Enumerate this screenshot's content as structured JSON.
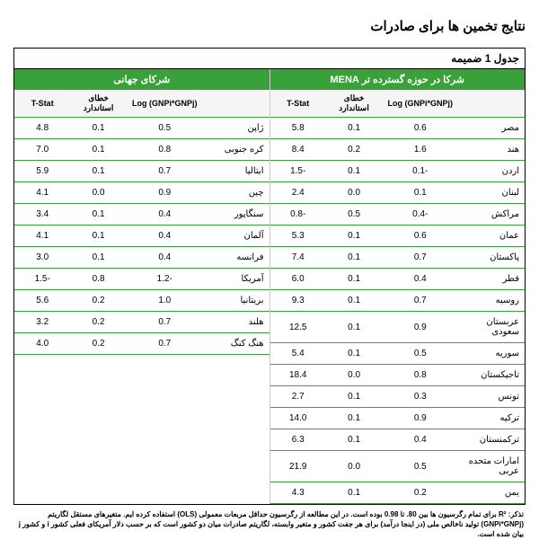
{
  "title": "نتایج تخمین ها برای صادرات",
  "appendix_label": "جدول 1 ضمیمه",
  "colors": {
    "header_bg": "#3aa03a",
    "header_fg": "#ffffff",
    "row_border": "#3aa03a",
    "outer_border": "#000000"
  },
  "left_table": {
    "header": "شرکا در حوزه گسترده تر MENA",
    "columns": {
      "country": "",
      "log": "Log (GNPi*GNPj)",
      "se": "خطای استاندارد",
      "t": "T-Stat"
    },
    "rows": [
      {
        "country": "مصر",
        "log": "0.6",
        "se": "0.1",
        "t": "5.8"
      },
      {
        "country": "هند",
        "log": "1.6",
        "se": "0.2",
        "t": "8.4"
      },
      {
        "country": "اردن",
        "log": "-0.1",
        "se": "0.1",
        "t": "-1.5"
      },
      {
        "country": "لبنان",
        "log": "0.1",
        "se": "0.0",
        "t": "2.4"
      },
      {
        "country": "مراكش",
        "log": "-0.4",
        "se": "0.5",
        "t": "-0.8"
      },
      {
        "country": "عمان",
        "log": "0.6",
        "se": "0.1",
        "t": "5.3"
      },
      {
        "country": "پاکستان",
        "log": "0.7",
        "se": "0.1",
        "t": "7.4"
      },
      {
        "country": "قطر",
        "log": "0.4",
        "se": "0.1",
        "t": "6.0"
      },
      {
        "country": "روسیه",
        "log": "0.7",
        "se": "0.1",
        "t": "9.3"
      },
      {
        "country": "عربستان سعودی",
        "log": "0.9",
        "se": "0.1",
        "t": "12.5"
      },
      {
        "country": "سوریه",
        "log": "0.5",
        "se": "0.1",
        "t": "5.4"
      },
      {
        "country": "تاجیکستان",
        "log": "0.8",
        "se": "0.0",
        "t": "18.4"
      },
      {
        "country": "تونس",
        "log": "0.3",
        "se": "0.1",
        "t": "2.7"
      },
      {
        "country": "ترکیه",
        "log": "0.9",
        "se": "0.1",
        "t": "14.0"
      },
      {
        "country": "ترکمنستان",
        "log": "0.4",
        "se": "0.1",
        "t": "6.3"
      },
      {
        "country": "امارات متحده عربی",
        "log": "0.5",
        "se": "0.0",
        "t": "21.9"
      },
      {
        "country": "یمن",
        "log": "0.2",
        "se": "0.1",
        "t": "4.3"
      }
    ]
  },
  "right_table": {
    "header": "شرکای جهانی",
    "columns": {
      "country": "",
      "log": "Log (GNPi*GNPj)",
      "se": "خطای استاندارد",
      "t": "T-Stat"
    },
    "rows": [
      {
        "country": "ژاپن",
        "log": "0.5",
        "se": "0.1",
        "t": "4.8"
      },
      {
        "country": "کره جنوبی",
        "log": "0.8",
        "se": "0.1",
        "t": "7.0"
      },
      {
        "country": "ایتالیا",
        "log": "0.7",
        "se": "0.1",
        "t": "5.9"
      },
      {
        "country": "چین",
        "log": "0.9",
        "se": "0.0",
        "t": "4.1"
      },
      {
        "country": "سنگاپور",
        "log": "0.4",
        "se": "0.1",
        "t": "3.4"
      },
      {
        "country": "آلمان",
        "log": "0.4",
        "se": "0.1",
        "t": "4.1"
      },
      {
        "country": "فرانسه",
        "log": "0.4",
        "se": "0.1",
        "t": "3.0"
      },
      {
        "country": "آمریکا",
        "log": "-1.2",
        "se": "0.8",
        "t": "-1.5"
      },
      {
        "country": "بریتانیا",
        "log": "1.0",
        "se": "0.2",
        "t": "5.6"
      },
      {
        "country": "هلند",
        "log": "0.7",
        "se": "0.2",
        "t": "3.2"
      },
      {
        "country": "هنگ کنگ",
        "log": "0.7",
        "se": "0.2",
        "t": "4.0"
      }
    ]
  },
  "footnote": "تذکر: R² برای تمام رگرسیون ها بین 80. تا 0.98 بوده است. در این مطالعه از رگرسیون حداقل مربعات معمولی (OLS) استفاده کرده ایم. متغیرهای مستقل لگاریتم (GNPi*GNPj) تولید ناخالص ملی (در اینجا درآمد) برای هر جفت کشور و متغیر وابسته، لگاریتم صادرات میان دو کشور است که بر حسب دلار آمریکای فعلی کشور i و کشور j بیان شده است."
}
